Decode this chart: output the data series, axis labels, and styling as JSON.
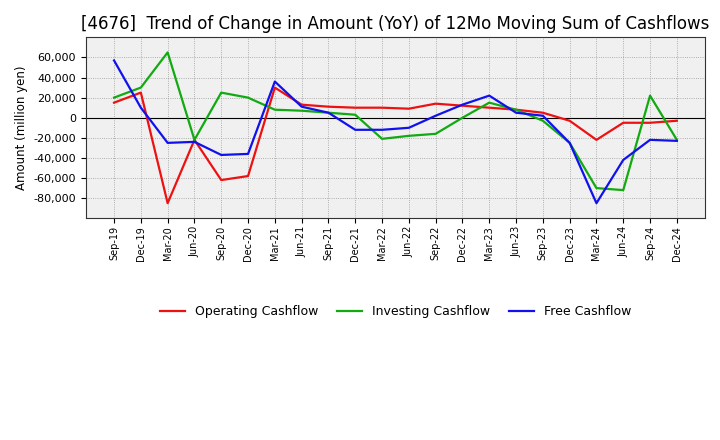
{
  "title": "[4676]  Trend of Change in Amount (YoY) of 12Mo Moving Sum of Cashflows",
  "ylabel": "Amount (million yen)",
  "labels": [
    "Sep-19",
    "Dec-19",
    "Mar-20",
    "Jun-20",
    "Sep-20",
    "Dec-20",
    "Mar-21",
    "Jun-21",
    "Sep-21",
    "Dec-21",
    "Mar-22",
    "Jun-22",
    "Sep-22",
    "Dec-22",
    "Mar-23",
    "Jun-23",
    "Sep-23",
    "Dec-23",
    "Mar-24",
    "Jun-24",
    "Sep-24",
    "Dec-24"
  ],
  "operating": [
    15000,
    25000,
    -85000,
    -22000,
    -62000,
    -58000,
    30000,
    13000,
    11000,
    10000,
    10000,
    9000,
    14000,
    12000,
    10000,
    8000,
    5000,
    -3000,
    -22000,
    -5000,
    -5000,
    -3000
  ],
  "investing": [
    20000,
    30000,
    65000,
    -22000,
    25000,
    20000,
    8000,
    7000,
    5000,
    3000,
    -21000,
    -18000,
    -16000,
    0,
    15000,
    8000,
    -3000,
    -25000,
    -70000,
    -72000,
    22000,
    -22000
  ],
  "free": [
    57000,
    10000,
    -25000,
    -24000,
    -37000,
    -36000,
    36000,
    11000,
    5000,
    -12000,
    -12000,
    -10000,
    2000,
    13000,
    22000,
    5000,
    2000,
    -25000,
    -85000,
    -42000,
    -22000,
    -23000
  ],
  "operating_color": "#ee1111",
  "investing_color": "#11aa11",
  "free_color": "#1111ee",
  "ylim": [
    -100000,
    80000
  ],
  "yticks": [
    -80000,
    -60000,
    -40000,
    -20000,
    0,
    20000,
    40000,
    60000
  ],
  "background_color": "#ffffff",
  "plot_bg_color": "#f0f0f0",
  "grid_color": "#999999",
  "title_fontsize": 12,
  "axis_fontsize": 8,
  "legend_labels": [
    "Operating Cashflow",
    "Investing Cashflow",
    "Free Cashflow"
  ]
}
